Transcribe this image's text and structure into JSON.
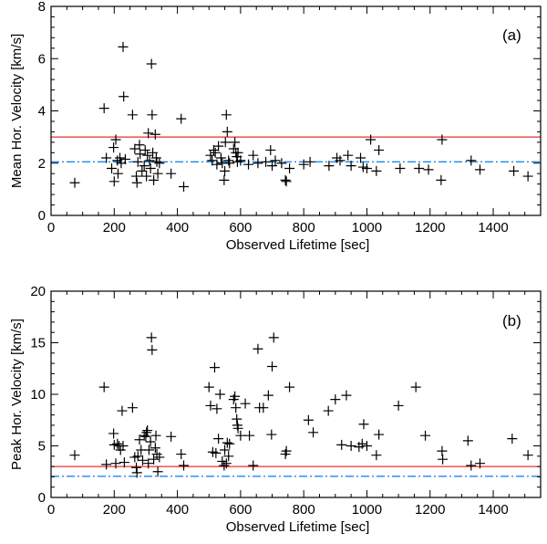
{
  "chart_data": [
    {
      "type": "scatter",
      "panel_label": "(a)",
      "xlabel": "Observed Lifetime [sec]",
      "ylabel": "Mean Hor. Velocity [km/s]",
      "xlim": [
        0,
        1550
      ],
      "ylim": [
        0,
        8
      ],
      "xticks": [
        "0",
        "200",
        "400",
        "600",
        "800",
        "1000",
        "1200",
        "1400"
      ],
      "xtick_values": [
        0,
        200,
        400,
        600,
        800,
        1000,
        1200,
        1400
      ],
      "yticks": [
        "0",
        "2",
        "4",
        "6",
        "8"
      ],
      "ytick_values": [
        0,
        2,
        4,
        6,
        8
      ],
      "reference_lines": [
        {
          "name": "red-solid-line",
          "y": 3.0,
          "color": "#e8312a",
          "style": "solid"
        },
        {
          "name": "blue-dashdot-line",
          "y": 2.05,
          "color": "#1e88e5",
          "style": "dashdot"
        }
      ],
      "points": [
        [
          75,
          1.25
        ],
        [
          168,
          4.1
        ],
        [
          175,
          2.2
        ],
        [
          192,
          1.8
        ],
        [
          198,
          2.6
        ],
        [
          200,
          1.3
        ],
        [
          205,
          2.9
        ],
        [
          210,
          2.1
        ],
        [
          212,
          1.6
        ],
        [
          218,
          2.2
        ],
        [
          222,
          2.0
        ],
        [
          228,
          6.45
        ],
        [
          230,
          4.55
        ],
        [
          235,
          2.15
        ],
        [
          258,
          3.85
        ],
        [
          265,
          2.55
        ],
        [
          270,
          1.5
        ],
        [
          272,
          1.25
        ],
        [
          275,
          2.05
        ],
        [
          280,
          2.7
        ],
        [
          282,
          2.35
        ],
        [
          288,
          1.7
        ],
        [
          295,
          1.9
        ],
        [
          298,
          2.5
        ],
        [
          302,
          1.5
        ],
        [
          305,
          2.3
        ],
        [
          308,
          3.15
        ],
        [
          312,
          2.1
        ],
        [
          315,
          1.8
        ],
        [
          318,
          5.8
        ],
        [
          320,
          3.85
        ],
        [
          322,
          2.4
        ],
        [
          325,
          1.35
        ],
        [
          330,
          3.1
        ],
        [
          333,
          2.2
        ],
        [
          335,
          2.05
        ],
        [
          338,
          1.6
        ],
        [
          343,
          2.0
        ],
        [
          380,
          1.6
        ],
        [
          412,
          3.7
        ],
        [
          420,
          1.1
        ],
        [
          505,
          2.3
        ],
        [
          510,
          2.1
        ],
        [
          515,
          2.5
        ],
        [
          520,
          2.4
        ],
        [
          525,
          1.95
        ],
        [
          530,
          2.65
        ],
        [
          538,
          2.2
        ],
        [
          542,
          2.0
        ],
        [
          548,
          1.35
        ],
        [
          550,
          1.7
        ],
        [
          552,
          2.8
        ],
        [
          555,
          3.85
        ],
        [
          558,
          3.2
        ],
        [
          562,
          2.1
        ],
        [
          565,
          2.0
        ],
        [
          578,
          2.55
        ],
        [
          582,
          2.8
        ],
        [
          585,
          2.4
        ],
        [
          588,
          2.25
        ],
        [
          590,
          2.05
        ],
        [
          592,
          2.4
        ],
        [
          600,
          2.1
        ],
        [
          625,
          1.95
        ],
        [
          640,
          2.3
        ],
        [
          655,
          2.0
        ],
        [
          680,
          2.05
        ],
        [
          695,
          2.5
        ],
        [
          700,
          1.9
        ],
        [
          710,
          2.1
        ],
        [
          730,
          2.0
        ],
        [
          742,
          1.35
        ],
        [
          745,
          1.3
        ],
        [
          755,
          1.8
        ],
        [
          800,
          1.95
        ],
        [
          820,
          2.05
        ],
        [
          880,
          1.9
        ],
        [
          905,
          2.2
        ],
        [
          915,
          2.1
        ],
        [
          940,
          2.3
        ],
        [
          950,
          1.9
        ],
        [
          980,
          2.2
        ],
        [
          988,
          1.85
        ],
        [
          1000,
          1.8
        ],
        [
          1012,
          2.9
        ],
        [
          1038,
          2.5
        ],
        [
          1030,
          1.7
        ],
        [
          1105,
          1.8
        ],
        [
          1165,
          1.8
        ],
        [
          1195,
          1.75
        ],
        [
          1235,
          1.35
        ],
        [
          1238,
          2.9
        ],
        [
          1330,
          2.1
        ],
        [
          1358,
          1.75
        ],
        [
          1465,
          1.7
        ],
        [
          1510,
          1.5
        ]
      ]
    },
    {
      "type": "scatter",
      "panel_label": "(b)",
      "xlabel": "Observed Lifetime [sec]",
      "ylabel": "Peak Hor. Velocity [km/s]",
      "xlim": [
        0,
        1550
      ],
      "ylim": [
        0,
        20
      ],
      "xticks": [
        "0",
        "200",
        "400",
        "600",
        "800",
        "1000",
        "1200",
        "1400"
      ],
      "xtick_values": [
        0,
        200,
        400,
        600,
        800,
        1000,
        1200,
        1400
      ],
      "yticks": [
        "0",
        "5",
        "10",
        "15",
        "20"
      ],
      "ytick_values": [
        0,
        5,
        10,
        15,
        20
      ],
      "reference_lines": [
        {
          "name": "red-solid-line",
          "y": 3.0,
          "color": "#e8312a",
          "style": "solid"
        },
        {
          "name": "blue-dashdot-line",
          "y": 2.05,
          "color": "#1e88e5",
          "style": "dashdot"
        }
      ],
      "points": [
        [
          75,
          4.1
        ],
        [
          168,
          10.7
        ],
        [
          175,
          3.2
        ],
        [
          198,
          6.2
        ],
        [
          200,
          5.1
        ],
        [
          205,
          3.3
        ],
        [
          210,
          5.2
        ],
        [
          215,
          5.0
        ],
        [
          220,
          4.6
        ],
        [
          225,
          8.4
        ],
        [
          228,
          5.0
        ],
        [
          232,
          3.4
        ],
        [
          258,
          8.7
        ],
        [
          265,
          3.9
        ],
        [
          270,
          2.9
        ],
        [
          272,
          2.4
        ],
        [
          275,
          4.0
        ],
        [
          280,
          5.6
        ],
        [
          285,
          4.6
        ],
        [
          290,
          3.6
        ],
        [
          295,
          6.0
        ],
        [
          300,
          5.9
        ],
        [
          302,
          6.3
        ],
        [
          305,
          6.5
        ],
        [
          308,
          3.3
        ],
        [
          310,
          4.6
        ],
        [
          315,
          5.4
        ],
        [
          318,
          15.5
        ],
        [
          320,
          14.3
        ],
        [
          325,
          3.7
        ],
        [
          330,
          4.8
        ],
        [
          332,
          6.0
        ],
        [
          335,
          4.2
        ],
        [
          338,
          2.5
        ],
        [
          343,
          3.9
        ],
        [
          380,
          5.9
        ],
        [
          412,
          4.2
        ],
        [
          420,
          3.1
        ],
        [
          500,
          10.7
        ],
        [
          505,
          8.9
        ],
        [
          512,
          4.4
        ],
        [
          518,
          12.6
        ],
        [
          522,
          4.3
        ],
        [
          525,
          8.6
        ],
        [
          530,
          5.7
        ],
        [
          535,
          10.0
        ],
        [
          542,
          3.5
        ],
        [
          548,
          3.1
        ],
        [
          550,
          4.6
        ],
        [
          555,
          3.3
        ],
        [
          558,
          5.3
        ],
        [
          562,
          4.0
        ],
        [
          565,
          5.2
        ],
        [
          578,
          9.5
        ],
        [
          582,
          9.8
        ],
        [
          585,
          8.7
        ],
        [
          588,
          7.6
        ],
        [
          590,
          7.0
        ],
        [
          592,
          6.7
        ],
        [
          600,
          6.0
        ],
        [
          615,
          9.1
        ],
        [
          628,
          6.0
        ],
        [
          640,
          3.1
        ],
        [
          655,
          14.4
        ],
        [
          660,
          8.7
        ],
        [
          672,
          8.7
        ],
        [
          688,
          9.9
        ],
        [
          698,
          6.1
        ],
        [
          700,
          12.7
        ],
        [
          705,
          15.5
        ],
        [
          742,
          4.2
        ],
        [
          745,
          4.5
        ],
        [
          755,
          10.7
        ],
        [
          815,
          7.5
        ],
        [
          830,
          6.3
        ],
        [
          878,
          8.4
        ],
        [
          900,
          9.5
        ],
        [
          920,
          5.1
        ],
        [
          935,
          9.9
        ],
        [
          950,
          5.0
        ],
        [
          975,
          4.9
        ],
        [
          985,
          5.2
        ],
        [
          990,
          7.1
        ],
        [
          1000,
          5.0
        ],
        [
          1030,
          4.1
        ],
        [
          1038,
          6.1
        ],
        [
          1100,
          8.9
        ],
        [
          1155,
          10.7
        ],
        [
          1185,
          6.0
        ],
        [
          1238,
          4.5
        ],
        [
          1240,
          3.7
        ],
        [
          1320,
          5.5
        ],
        [
          1330,
          3.1
        ],
        [
          1358,
          3.3
        ],
        [
          1460,
          5.7
        ],
        [
          1510,
          4.1
        ]
      ]
    }
  ]
}
